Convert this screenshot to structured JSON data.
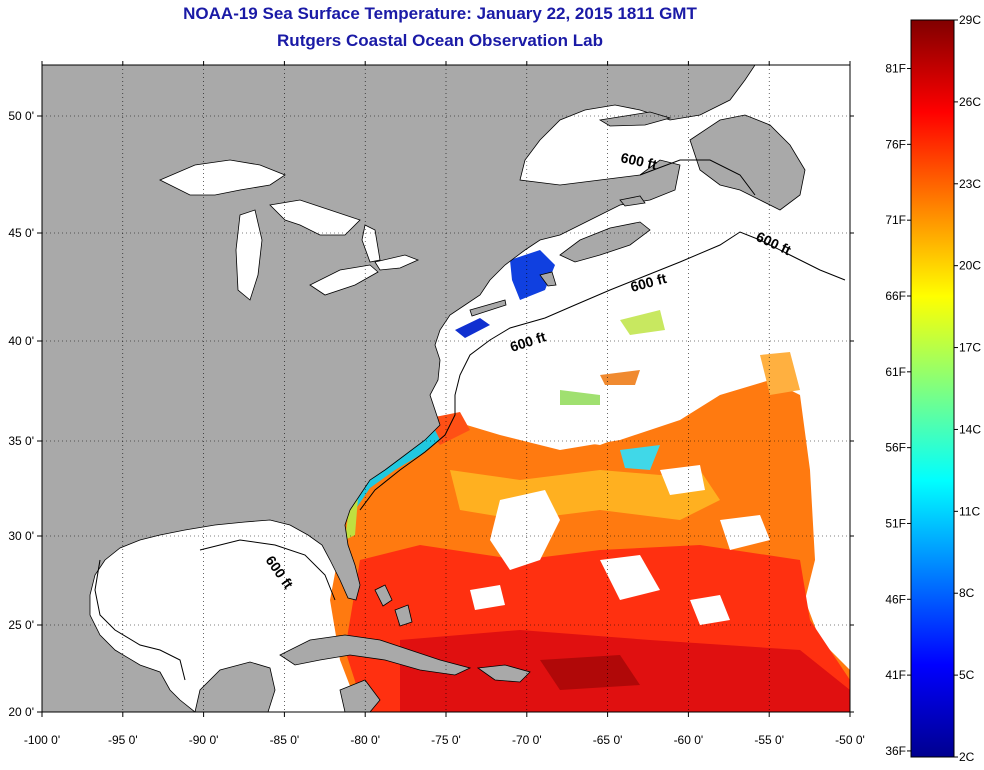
{
  "title_line1": "NOAA-19 Sea Surface Temperature:  January 22, 2015 1811 GMT",
  "title_line2": "Rutgers Coastal Ocean Observation Lab",
  "lon_labels": [
    "-100 0'",
    "-95 0'",
    "-90 0'",
    "-85 0'",
    "-80 0'",
    "-75 0'",
    "-70 0'",
    "-65 0'",
    "-60 0'",
    "-55 0'",
    "-50 0'"
  ],
  "lat_labels": [
    "20 0'",
    "25 0'",
    "30 0'",
    "35 0'",
    "40 0'",
    "45 0'",
    "50 0'"
  ],
  "contour_label": "600 ft",
  "colorbar": {
    "celsius": [
      "2C",
      "5C",
      "8C",
      "11C",
      "14C",
      "17C",
      "20C",
      "23C",
      "26C",
      "29C"
    ],
    "fahrenheit": [
      "36F",
      "41F",
      "46F",
      "51F",
      "56F",
      "61F",
      "66F",
      "71F",
      "76F",
      "81F"
    ],
    "range_c": [
      2,
      29
    ]
  },
  "colors": {
    "land": "#a9a9a9",
    "no_data": "#ffffff",
    "title": "#1a1aa6"
  }
}
